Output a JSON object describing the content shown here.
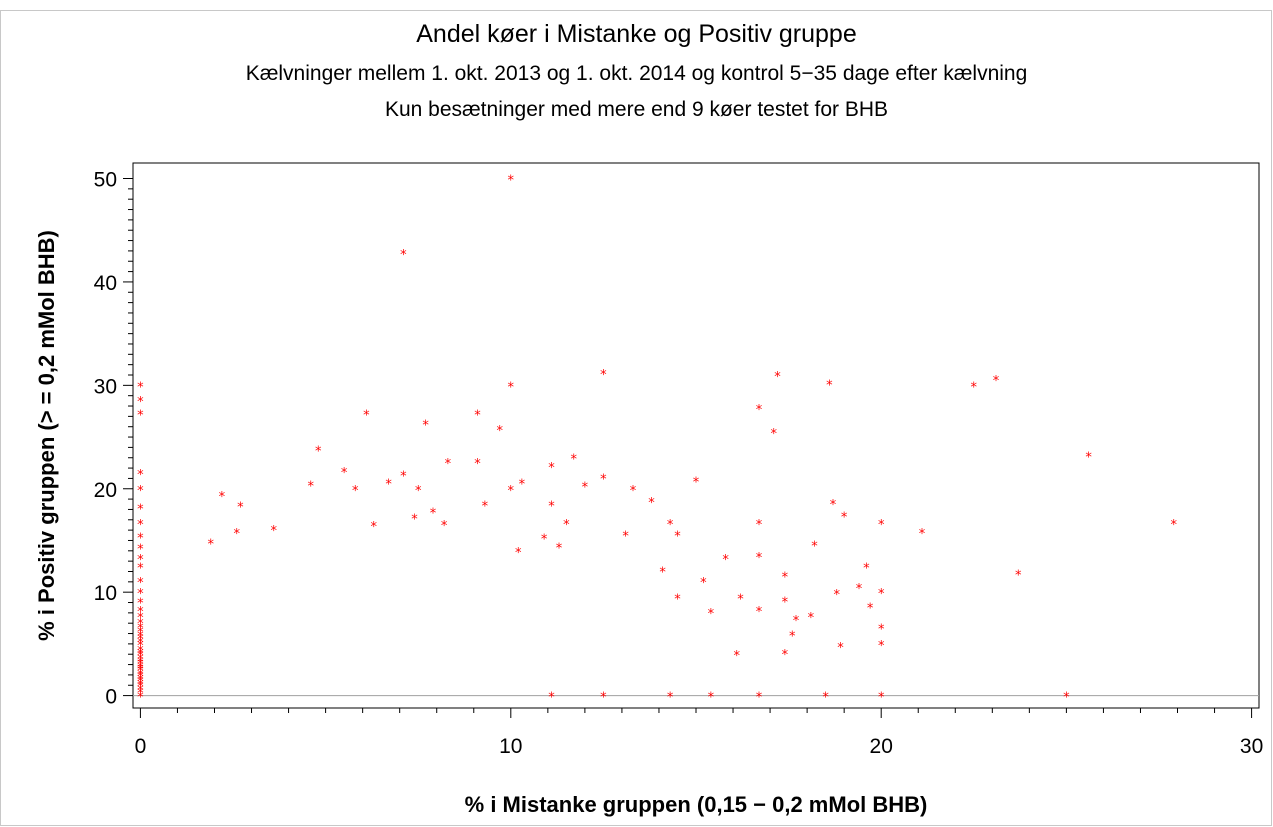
{
  "chart_data": {
    "type": "scatter",
    "title": "Andel køer i Mistanke og Positiv gruppe",
    "subtitle_1": "Kælvninger mellem 1. okt. 2013 og 1. okt. 2014 og kontrol 5−35 dage efter kælvning",
    "subtitle_2": "Kun besætninger med mere end 9 køer testet for BHB",
    "xlabel": "% i Mistanke gruppen (0,15 − 0,2 mMol BHB)",
    "ylabel": "% i Positiv gruppen (> = 0,2 mMol BHB)",
    "xlim": [
      -0.2,
      30.2
    ],
    "ylim": [
      -1.2,
      51.5
    ],
    "x_ticks": [
      0,
      10,
      20,
      30
    ],
    "y_ticks": [
      0,
      10,
      20,
      30,
      40,
      50
    ],
    "marker": "*",
    "marker_color": "#ff0000",
    "reference_line_y": 0,
    "grid": false,
    "legend": "none",
    "points": [
      [
        10,
        50
      ],
      [
        7.1,
        42.8
      ],
      [
        12.5,
        31.2
      ],
      [
        17.2,
        31
      ],
      [
        23.1,
        30.6
      ],
      [
        18.6,
        30.2
      ],
      [
        22.5,
        30
      ],
      [
        10,
        30
      ],
      [
        16.7,
        27.8
      ],
      [
        6.1,
        27.3
      ],
      [
        9.1,
        27.3
      ],
      [
        7.7,
        26.3
      ],
      [
        9.7,
        25.8
      ],
      [
        17.1,
        25.5
      ],
      [
        4.8,
        23.8
      ],
      [
        25.6,
        23.2
      ],
      [
        11.7,
        23
      ],
      [
        8.3,
        22.6
      ],
      [
        9.1,
        22.6
      ],
      [
        11.1,
        22.2
      ],
      [
        5.5,
        21.7
      ],
      [
        7.1,
        21.4
      ],
      [
        12.5,
        21.1
      ],
      [
        15,
        20.8
      ],
      [
        10.3,
        20.6
      ],
      [
        4.6,
        20.4
      ],
      [
        6.7,
        20.6
      ],
      [
        12,
        20.3
      ],
      [
        10,
        20
      ],
      [
        13.3,
        20
      ],
      [
        5.8,
        20
      ],
      [
        7.5,
        20
      ],
      [
        2.2,
        19.4
      ],
      [
        13.8,
        18.8
      ],
      [
        18.7,
        18.6
      ],
      [
        9.3,
        18.5
      ],
      [
        11.1,
        18.5
      ],
      [
        2.7,
        18.4
      ],
      [
        7.9,
        17.8
      ],
      [
        19,
        17.4
      ],
      [
        7.4,
        17.2
      ],
      [
        11.5,
        16.7
      ],
      [
        14.3,
        16.7
      ],
      [
        16.7,
        16.7
      ],
      [
        20,
        16.7
      ],
      [
        27.9,
        16.7
      ],
      [
        8.2,
        16.6
      ],
      [
        6.3,
        16.5
      ],
      [
        3.6,
        16.1
      ],
      [
        21.1,
        15.8
      ],
      [
        2.6,
        15.8
      ],
      [
        14.5,
        15.6
      ],
      [
        13.1,
        15.6
      ],
      [
        10.9,
        15.3
      ],
      [
        18.2,
        14.6
      ],
      [
        19.6,
        12.5
      ],
      [
        1.9,
        14.8
      ],
      [
        11.3,
        14.4
      ],
      [
        10.2,
        14
      ],
      [
        15.8,
        13.3
      ],
      [
        17.4,
        11.6
      ],
      [
        23.7,
        11.8
      ],
      [
        19.4,
        10.5
      ],
      [
        20,
        10
      ],
      [
        16.7,
        13.5
      ],
      [
        14.1,
        12.1
      ],
      [
        15.2,
        11.1
      ],
      [
        18.8,
        9.9
      ],
      [
        14.5,
        9.5
      ],
      [
        16.2,
        9.5
      ],
      [
        17.4,
        9.2
      ],
      [
        19.7,
        8.6
      ],
      [
        16.7,
        8.3
      ],
      [
        17.7,
        7.4
      ],
      [
        18.1,
        7.7
      ],
      [
        15.4,
        8.1
      ],
      [
        20,
        6.6
      ],
      [
        17.6,
        5.9
      ],
      [
        18.9,
        4.8
      ],
      [
        20,
        5
      ],
      [
        16.1,
        4
      ],
      [
        17.4,
        4.1
      ],
      [
        25,
        0
      ],
      [
        20,
        0
      ],
      [
        18.5,
        0
      ],
      [
        16.7,
        0
      ],
      [
        15.4,
        0
      ],
      [
        14.3,
        0
      ],
      [
        12.5,
        0
      ],
      [
        11.1,
        0
      ],
      [
        0,
        30
      ],
      [
        0,
        28.6
      ],
      [
        0,
        27.3
      ],
      [
        0,
        21.5
      ],
      [
        0,
        20
      ],
      [
        0,
        18.2
      ],
      [
        0,
        16.7
      ],
      [
        0,
        15.4
      ],
      [
        0,
        14.3
      ],
      [
        0,
        13.3
      ],
      [
        0,
        12.5
      ],
      [
        0,
        11.1
      ],
      [
        0,
        10
      ],
      [
        0,
        9.1
      ],
      [
        0,
        8.3
      ],
      [
        0,
        7.7
      ],
      [
        0,
        7.1
      ],
      [
        0,
        6.7
      ],
      [
        0,
        6.3
      ],
      [
        0,
        5.9
      ],
      [
        0,
        5.6
      ],
      [
        0,
        5.3
      ],
      [
        0,
        5
      ],
      [
        0,
        4.5
      ],
      [
        0,
        4.2
      ],
      [
        0,
        4
      ],
      [
        0,
        3.7
      ],
      [
        0,
        3.4
      ],
      [
        0,
        3.2
      ],
      [
        0,
        2.9
      ],
      [
        0,
        2.7
      ],
      [
        0,
        2.5
      ],
      [
        0,
        2.2
      ],
      [
        0,
        2
      ],
      [
        0,
        1.7
      ],
      [
        0,
        1.5
      ],
      [
        0,
        1.2
      ],
      [
        0,
        1
      ],
      [
        0,
        0.7
      ],
      [
        0,
        0.4
      ],
      [
        0,
        0
      ]
    ]
  }
}
